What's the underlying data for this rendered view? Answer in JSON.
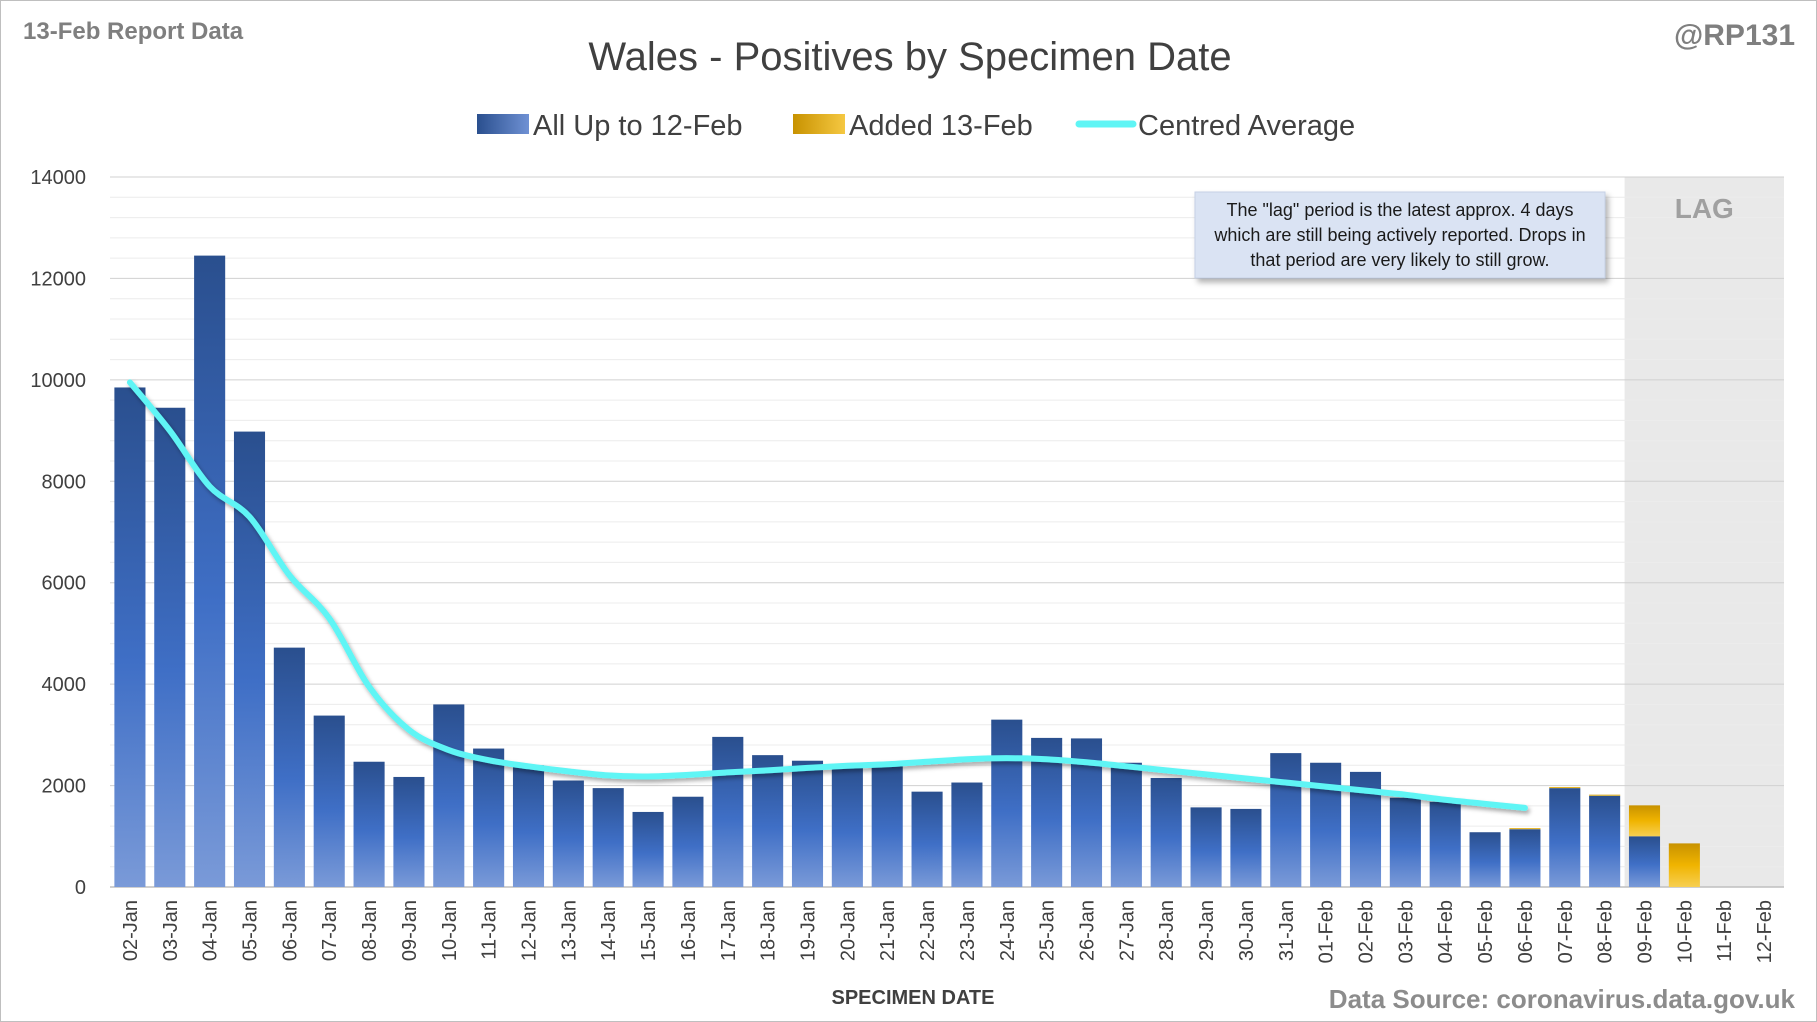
{
  "header": {
    "report_label": "13-Feb Report Data",
    "handle": "@RP131",
    "source": "Data Source: coronavirus.data.gov.uk"
  },
  "chart_data": {
    "type": "bar",
    "title": "Wales - Positives by Specimen Date",
    "xlabel": "SPECIMEN DATE",
    "ylabel": "",
    "ylim": [
      0,
      14000
    ],
    "yticks": [
      0,
      2000,
      4000,
      6000,
      8000,
      10000,
      12000,
      14000
    ],
    "grid": true,
    "legend_position": "top",
    "categories": [
      "02-Jan",
      "03-Jan",
      "04-Jan",
      "05-Jan",
      "06-Jan",
      "07-Jan",
      "08-Jan",
      "09-Jan",
      "10-Jan",
      "11-Jan",
      "12-Jan",
      "13-Jan",
      "14-Jan",
      "15-Jan",
      "16-Jan",
      "17-Jan",
      "18-Jan",
      "19-Jan",
      "20-Jan",
      "21-Jan",
      "22-Jan",
      "23-Jan",
      "24-Jan",
      "25-Jan",
      "26-Jan",
      "27-Jan",
      "28-Jan",
      "29-Jan",
      "30-Jan",
      "31-Jan",
      "01-Feb",
      "02-Feb",
      "03-Feb",
      "04-Feb",
      "05-Feb",
      "06-Feb",
      "07-Feb",
      "08-Feb",
      "09-Feb",
      "10-Feb",
      "11-Feb",
      "12-Feb"
    ],
    "series": [
      {
        "name": "All Up to 12-Feb",
        "kind": "bar",
        "color": "#2f528f",
        "values": [
          9850,
          9450,
          12450,
          8980,
          4720,
          3380,
          2470,
          2170,
          3600,
          2730,
          2400,
          2100,
          1950,
          1480,
          1780,
          2960,
          2600,
          2490,
          2390,
          2380,
          1880,
          2060,
          3300,
          2940,
          2930,
          2450,
          2150,
          1570,
          1540,
          2640,
          2450,
          2270,
          1760,
          1680,
          1080,
          1140,
          1950,
          1800,
          1000,
          0,
          0,
          0
        ]
      },
      {
        "name": "Added 13-Feb",
        "kind": "bar",
        "color": "#e6a800",
        "values": [
          0,
          0,
          0,
          0,
          0,
          0,
          0,
          0,
          0,
          0,
          0,
          0,
          0,
          0,
          0,
          0,
          0,
          0,
          0,
          0,
          0,
          0,
          0,
          0,
          0,
          0,
          0,
          0,
          0,
          0,
          0,
          0,
          0,
          0,
          0,
          20,
          20,
          20,
          610,
          860,
          0,
          0
        ]
      },
      {
        "name": "Centred Average",
        "kind": "line",
        "color": "#5ff5f5",
        "values": [
          9950,
          9000,
          7900,
          7300,
          6150,
          5300,
          3950,
          3100,
          2700,
          2500,
          2380,
          2280,
          2200,
          2180,
          2210,
          2260,
          2300,
          2350,
          2390,
          2420,
          2470,
          2520,
          2540,
          2520,
          2460,
          2380,
          2300,
          2220,
          2140,
          2060,
          1980,
          1900,
          1820,
          1720,
          1640,
          1560,
          null,
          null,
          null,
          null,
          null,
          null
        ]
      }
    ],
    "lag_region": {
      "start": "09-Feb",
      "end": "12-Feb",
      "label": "LAG"
    },
    "annotation": "The \"lag\" period is the latest approx. 4 days which are still being actively reported. Drops in that period are very likely to still grow."
  }
}
